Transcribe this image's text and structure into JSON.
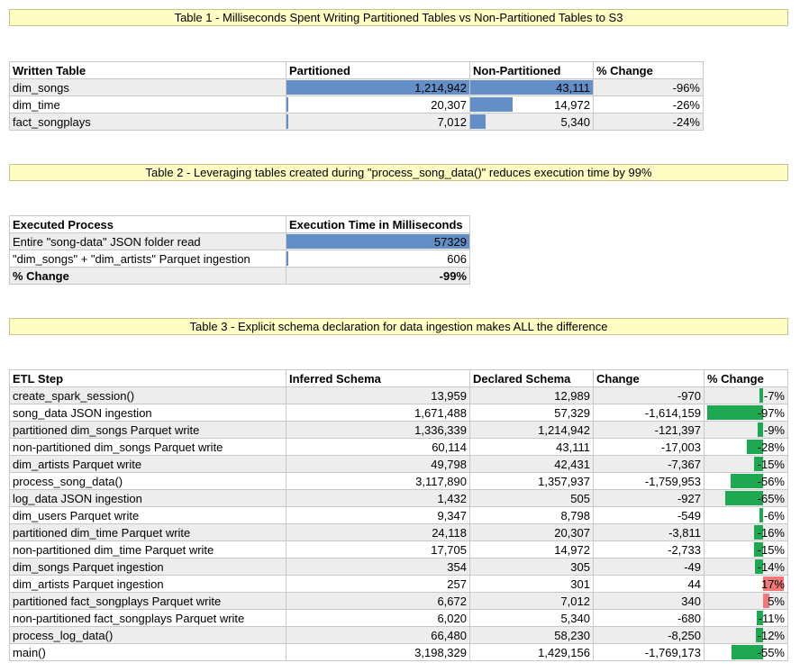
{
  "table1": {
    "title": "Table 1 - Milliseconds Spent Writing Partitioned Tables vs Non-Partitioned Tables to S3",
    "headers": [
      "Written Table",
      "Partitioned",
      "Non-Partitioned",
      "% Change"
    ],
    "rows": [
      {
        "name": "dim_songs",
        "partitioned": "1,214,942",
        "partitioned_value": 1214942,
        "non_partitioned": "43,111",
        "non_partitioned_value": 43111,
        "change": "-96%"
      },
      {
        "name": "dim_time",
        "partitioned": "20,307",
        "partitioned_value": 20307,
        "non_partitioned": "14,972",
        "non_partitioned_value": 14972,
        "change": "-26%"
      },
      {
        "name": "fact_songplays",
        "partitioned": "7,012",
        "partitioned_value": 7012,
        "non_partitioned": "5,340",
        "non_partitioned_value": 5340,
        "change": "-24%"
      }
    ]
  },
  "table2": {
    "title": "Table 2 -  Leveraging tables created during \"process_song_data()\" reduces execution time by 99%",
    "headers": [
      "Executed Process",
      "Execution Time in Milliseconds"
    ],
    "rows": [
      {
        "name": "Entire \"song-data\" JSON folder read",
        "time": "57329",
        "time_value": 57329
      },
      {
        "name": "\"dim_songs\" + \"dim_artists\" Parquet ingestion",
        "time": "606",
        "time_value": 606
      }
    ],
    "total": {
      "name": "% Change",
      "value": "-99%"
    }
  },
  "table3": {
    "title": "Table 3 - Explicit schema declaration for data ingestion makes ALL the difference",
    "headers": [
      "ETL Step",
      "Inferred Schema",
      "Declared Schema",
      "Change",
      "% Change"
    ],
    "rows": [
      {
        "step": "create_spark_session()",
        "inferred": "13,959",
        "declared": "12,989",
        "change": "-970",
        "pct": "-7%",
        "pct_value": -7
      },
      {
        "step": "song_data JSON ingestion",
        "inferred": "1,671,488",
        "declared": "57,329",
        "change": "-1,614,159",
        "pct": "-97%",
        "pct_value": -97
      },
      {
        "step": "partitioned dim_songs Parquet write",
        "inferred": "1,336,339",
        "declared": "1,214,942",
        "change": "-121,397",
        "pct": "-9%",
        "pct_value": -9
      },
      {
        "step": "non-partitioned dim_songs Parquet write",
        "inferred": "60,114",
        "declared": "43,111",
        "change": "-17,003",
        "pct": "-28%",
        "pct_value": -28
      },
      {
        "step": "dim_artists Parquet write",
        "inferred": "49,798",
        "declared": "42,431",
        "change": "-7,367",
        "pct": "-15%",
        "pct_value": -15
      },
      {
        "step": "process_song_data()",
        "inferred": "3,117,890",
        "declared": "1,357,937",
        "change": "-1,759,953",
        "pct": "-56%",
        "pct_value": -56
      },
      {
        "step": "log_data JSON ingestion",
        "inferred": "1,432",
        "declared": "505",
        "change": "-927",
        "pct": "-65%",
        "pct_value": -65
      },
      {
        "step": "dim_users Parquet write",
        "inferred": "9,347",
        "declared": "8,798",
        "change": "-549",
        "pct": "-6%",
        "pct_value": -6
      },
      {
        "step": "partitioned dim_time Parquet write",
        "inferred": "24,118",
        "declared": "20,307",
        "change": "-3,811",
        "pct": "-16%",
        "pct_value": -16
      },
      {
        "step": "non-partitioned dim_time Parquet write",
        "inferred": "17,705",
        "declared": "14,972",
        "change": "-2,733",
        "pct": "-15%",
        "pct_value": -15
      },
      {
        "step": "dim_songs Parquet ingestion",
        "inferred": "354",
        "declared": "305",
        "change": "-49",
        "pct": "-14%",
        "pct_value": -14
      },
      {
        "step": "dim_artists Parquet ingestion",
        "inferred": "257",
        "declared": "301",
        "change": "44",
        "pct": "17%",
        "pct_value": 17
      },
      {
        "step": "partitioned fact_songplays Parquet write",
        "inferred": "6,672",
        "declared": "7,012",
        "change": "340",
        "pct": "5%",
        "pct_value": 5
      },
      {
        "step": "non-partitioned fact_songplays Parquet write",
        "inferred": "6,020",
        "declared": "5,340",
        "change": "-680",
        "pct": "-11%",
        "pct_value": -11
      },
      {
        "step": "process_log_data()",
        "inferred": "66,480",
        "declared": "58,230",
        "change": "-8,250",
        "pct": "-12%",
        "pct_value": -12
      },
      {
        "step": "main()",
        "inferred": "3,198,329",
        "declared": "1,429,156",
        "change": "-1,769,173",
        "pct": "-55%",
        "pct_value": -55
      }
    ]
  },
  "colors": {
    "banner": "#fffdc4",
    "blue_bar": "#638ec6",
    "green_bar": "#1da851",
    "red_bar": "#f2797a",
    "alt_row": "#ededed"
  }
}
